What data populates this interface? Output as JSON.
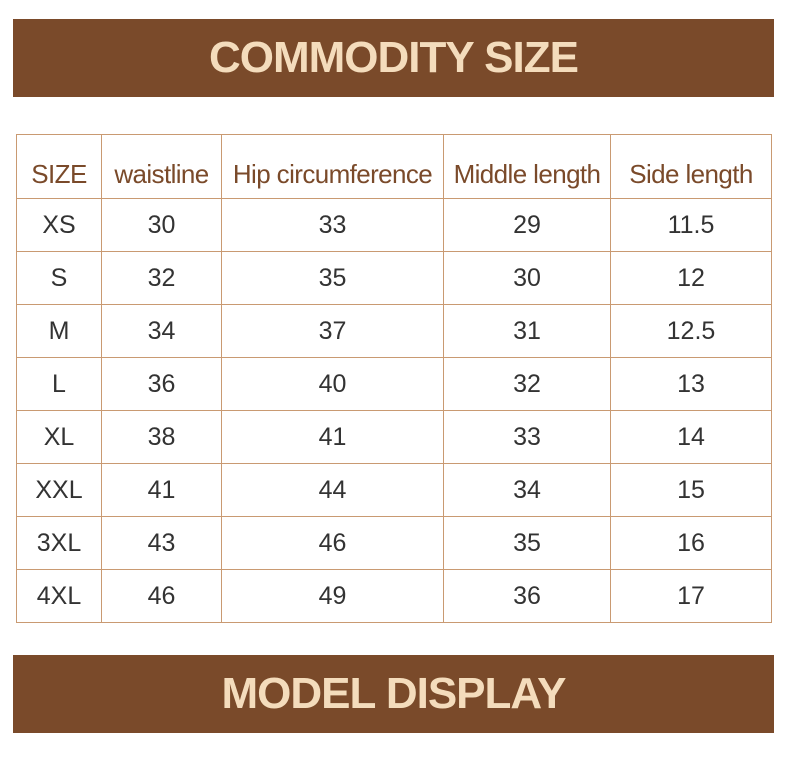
{
  "header": {
    "title": "COMMODITY SIZE"
  },
  "table": {
    "columns": [
      "SIZE",
      "waistline",
      "Hip circumference",
      "Middle length",
      "Side length"
    ],
    "rows": [
      [
        "XS",
        "30",
        "33",
        "29",
        "11.5"
      ],
      [
        "S",
        "32",
        "35",
        "30",
        "12"
      ],
      [
        "M",
        "34",
        "37",
        "31",
        "12.5"
      ],
      [
        "L",
        "36",
        "40",
        "32",
        "13"
      ],
      [
        "XL",
        "38",
        "41",
        "33",
        "14"
      ],
      [
        "XXL",
        "41",
        "44",
        "34",
        "15"
      ],
      [
        "3XL",
        "43",
        "46",
        "35",
        "16"
      ],
      [
        "4XL",
        "46",
        "49",
        "36",
        "17"
      ]
    ]
  },
  "footer": {
    "title": "MODEL DISPLAY"
  },
  "colors": {
    "banner_bg": "#7a4a2a",
    "banner_text": "#f4dcbc",
    "table_border": "#c99a72",
    "header_text": "#7a4a2a",
    "cell_text": "#333333"
  }
}
